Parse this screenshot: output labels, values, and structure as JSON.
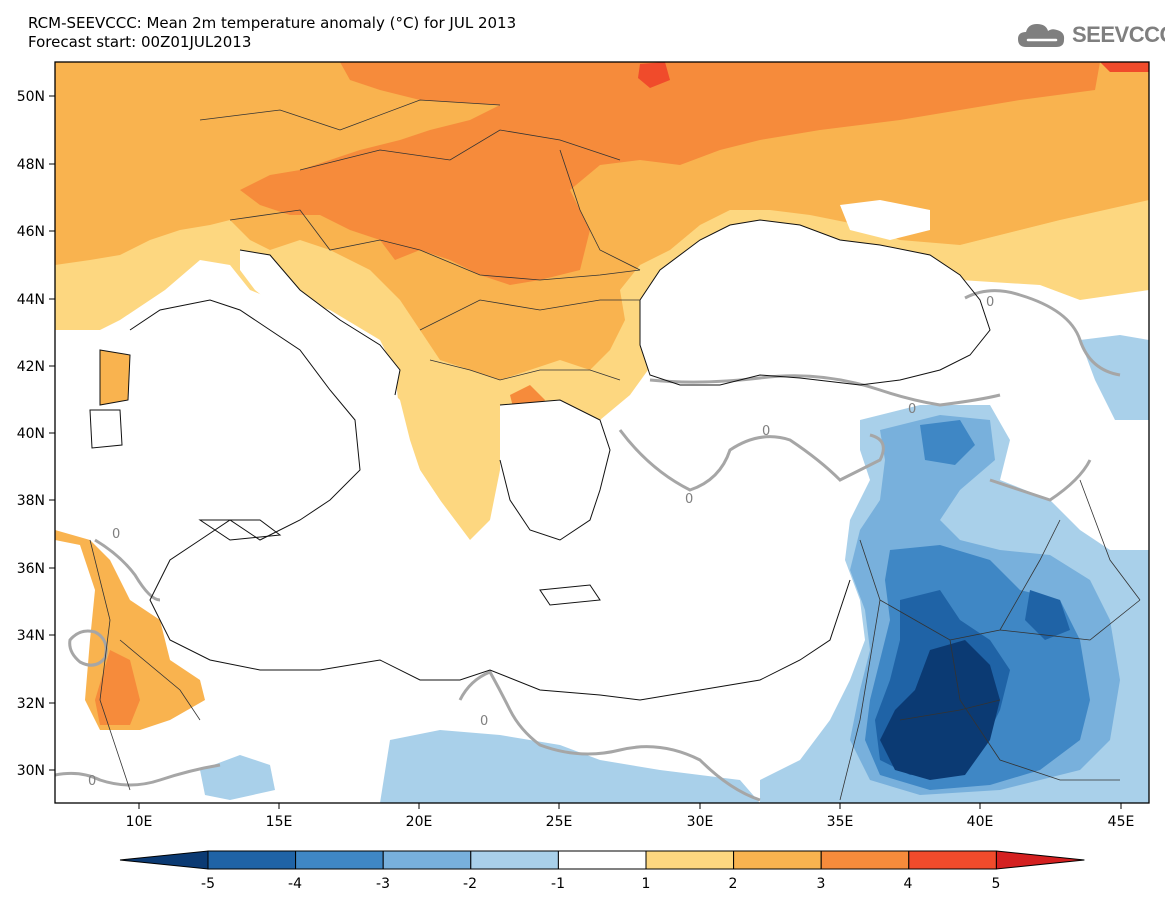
{
  "title": {
    "line1": "RCM-SEEVCCC: Mean 2m temperature anomaly (°C) for JUL 2013",
    "line2": "Forecast start: 00Z01JUL2013"
  },
  "logo": {
    "text": "SEEVCCC",
    "icon": "cloud-icon"
  },
  "map": {
    "lat_labels": [
      "50N",
      "48N",
      "46N",
      "44N",
      "42N",
      "40N",
      "38N",
      "36N",
      "34N",
      "32N",
      "30N"
    ],
    "lon_labels": [
      "10E",
      "15E",
      "20E",
      "25E",
      "30E",
      "35E",
      "40E",
      "45E"
    ],
    "lon_range": [
      7,
      46
    ],
    "lat_range": [
      29,
      51
    ],
    "contour_label": "0"
  },
  "colorbar": {
    "labels": [
      "-5",
      "-4",
      "-3",
      "-2",
      "-1",
      "1",
      "2",
      "3",
      "4",
      "5"
    ],
    "colors": [
      "#0b3a73",
      "#1f63a6",
      "#3f87c5",
      "#78b0dc",
      "#a9d0ea",
      "#ffffff",
      "#fdd780",
      "#f9b34f",
      "#f68b3b",
      "#f04b2b",
      "#d42020"
    ]
  }
}
